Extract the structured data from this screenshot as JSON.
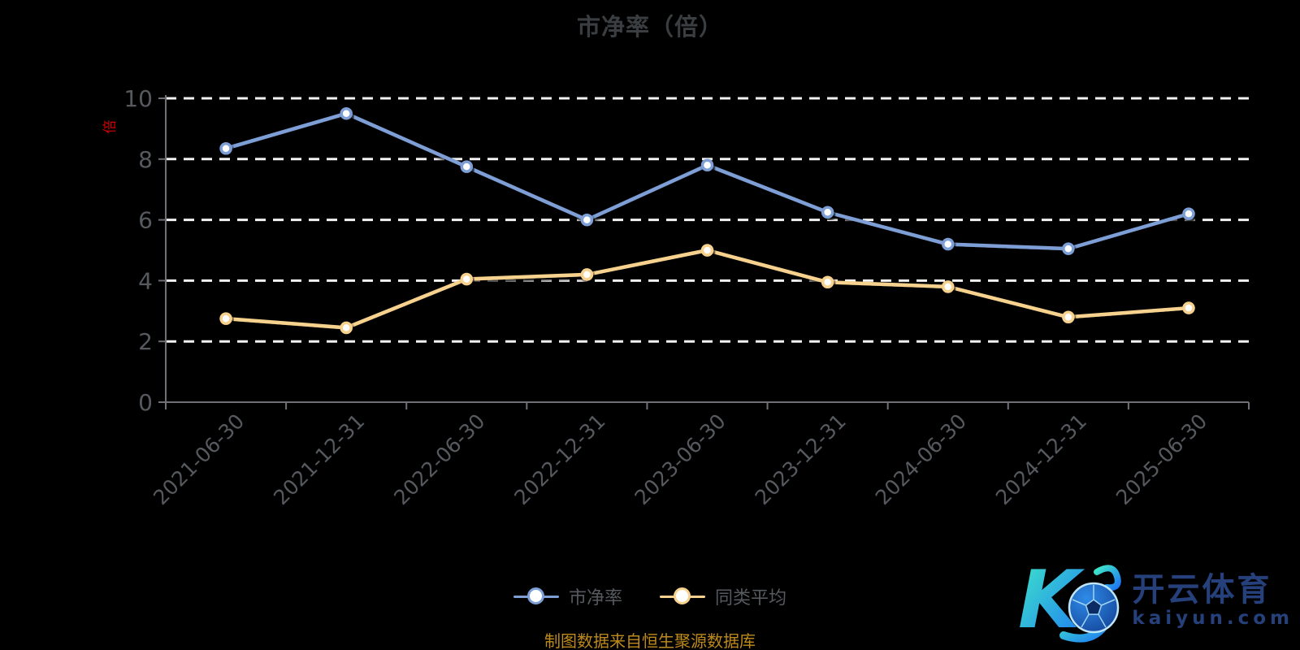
{
  "title": "市净率（倍）",
  "y_axis_unit": "倍",
  "footer": "制图数据来自恒生聚源数据库",
  "legend": {
    "items": [
      {
        "label": "市净率"
      },
      {
        "label": "同类平均"
      }
    ]
  },
  "watermark": {
    "brand_cn": "开云体育",
    "brand_url": "kaiyun.com"
  },
  "chart_data": {
    "type": "line",
    "title": "市净率（倍）",
    "categories": [
      "2021-06-30",
      "2021-12-31",
      "2022-06-30",
      "2022-12-31",
      "2023-06-30",
      "2023-12-31",
      "2024-06-30",
      "2024-12-31",
      "2025-06-30"
    ],
    "series": [
      {
        "name": "市净率",
        "color": "#7E9ED6",
        "marker": "circle",
        "values": [
          8.35,
          9.5,
          7.75,
          6.0,
          7.8,
          6.25,
          5.2,
          5.05,
          6.2
        ]
      },
      {
        "name": "同类平均",
        "color": "#F7D28E",
        "marker": "circle",
        "values": [
          2.75,
          2.45,
          4.05,
          4.2,
          5.0,
          3.95,
          3.8,
          2.8,
          3.1
        ]
      }
    ],
    "ylim": [
      0,
      10
    ],
    "y_ticks": [
      0,
      2,
      4,
      6,
      8,
      10
    ],
    "y_axis_name": "倍",
    "x_label_rotation": 45,
    "grid": {
      "horizontal": true,
      "style": "dashed",
      "color": "#F2F2F2"
    },
    "legend_position": "bottom"
  },
  "colors": {
    "background": "#000000",
    "title": "#3A3E41",
    "axis_line": "#6E7076",
    "axis_label": "#56595E",
    "legend_label": "#56595E",
    "footer": "#BE8A1B",
    "unit_label": "#D40000",
    "watermark_text": "#26407B"
  }
}
